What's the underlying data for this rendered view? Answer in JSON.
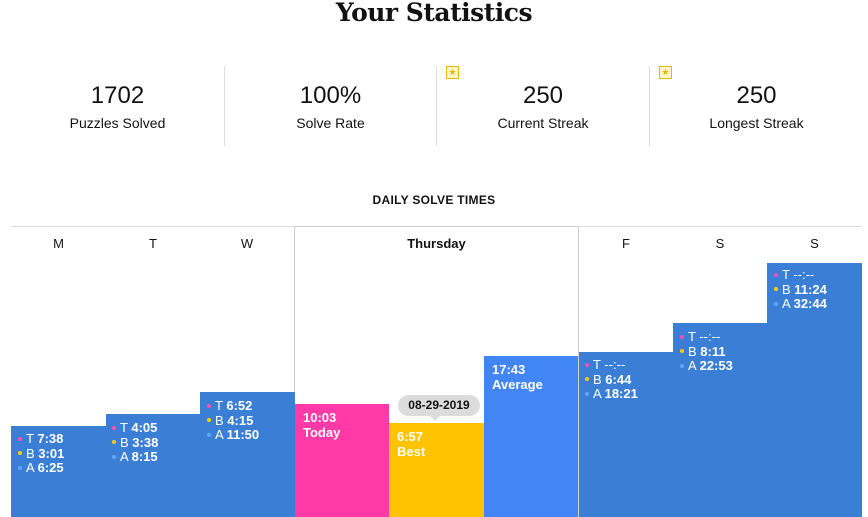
{
  "title": "Your Statistics",
  "stats": [
    {
      "value": "1702",
      "label": "Puzzles Solved"
    },
    {
      "value": "100%",
      "label": "Solve Rate"
    },
    {
      "value": "250",
      "label": "Current Streak"
    },
    {
      "value": "250",
      "label": "Longest Streak"
    }
  ],
  "star_icon": "star-badge-icon",
  "section_title": "DAILY SOLVE TIMES",
  "days": [
    "M",
    "T",
    "W",
    "Thursday",
    "F",
    "S",
    "S"
  ],
  "legend_prefix": {
    "today": "T",
    "best": "B",
    "average": "A"
  },
  "daily": [
    {
      "day": "M",
      "today": "7:38",
      "best": "3:01",
      "average": "6:25"
    },
    {
      "day": "T",
      "today": "4:05",
      "best": "3:38",
      "average": "8:15"
    },
    {
      "day": "W",
      "today": "6:52",
      "best": "4:15",
      "average": "11:50"
    },
    {
      "day": "F",
      "today": "--:--",
      "best": "6:44",
      "average": "18:21"
    },
    {
      "day": "S",
      "today": "--:--",
      "best": "8:11",
      "average": "22:53"
    },
    {
      "day": "S",
      "today": "--:--",
      "best": "11:24",
      "average": "32:44"
    }
  ],
  "thursday": {
    "today": {
      "time": "10:03",
      "label": "Today"
    },
    "best": {
      "time": "6:57",
      "label": "Best",
      "date": "08-29-2019"
    },
    "average": {
      "time": "17:43",
      "label": "Average"
    }
  },
  "colors": {
    "bar": "#3a7fd5",
    "today": "#ff3aa6",
    "best": "#ffc300",
    "average": "#4285f4"
  }
}
